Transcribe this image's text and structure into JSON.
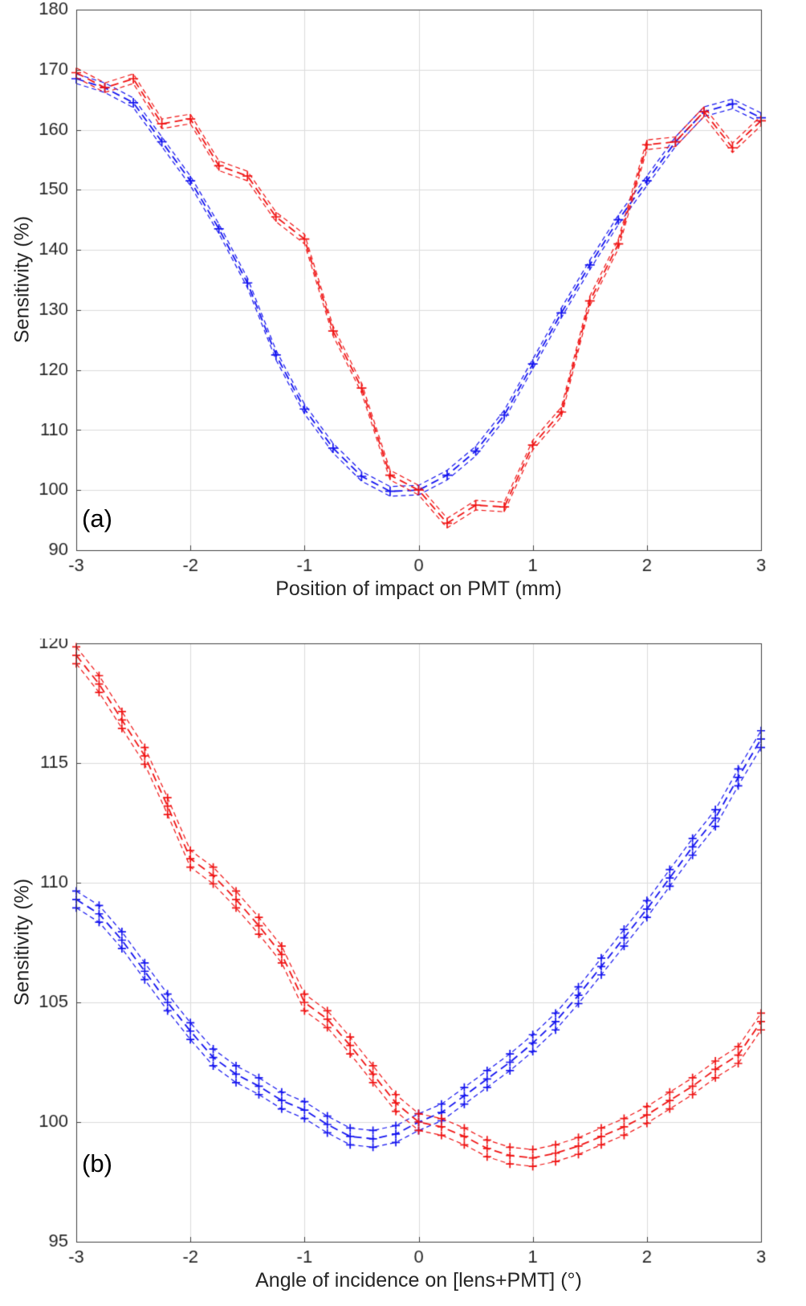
{
  "colors": {
    "background": "#ffffff",
    "grid": "#dcdcdc",
    "axis": "#404040",
    "text": "#262626",
    "blue_series": "#1414f0",
    "red_series": "#f01414"
  },
  "chart_data": [
    {
      "type": "line",
      "annotation": "(a)",
      "xlabel": "Position of impact on PMT (mm)",
      "ylabel": "Sensitivity (%)",
      "xlim": [
        -3,
        3
      ],
      "ylim": [
        90,
        180
      ],
      "xticks": [
        -3,
        -2,
        -1,
        0,
        1,
        2,
        3
      ],
      "yticks": [
        90,
        100,
        110,
        120,
        130,
        140,
        150,
        160,
        170,
        180
      ],
      "grid": true,
      "legend": false,
      "linestyle": "dashed",
      "marker": "+",
      "band_markers": false,
      "marker_size": 6,
      "x": [
        -3,
        -2.75,
        -2.5,
        -2.25,
        -2,
        -1.75,
        -1.5,
        -1.25,
        -1,
        -0.75,
        -0.5,
        -0.25,
        0,
        0.25,
        0.5,
        0.75,
        1,
        1.25,
        1.5,
        1.75,
        2,
        2.25,
        2.5,
        2.75,
        3
      ],
      "series": [
        {
          "name": "blue-curve",
          "color": "#1414f0",
          "band": 0.8,
          "values": [
            168.5,
            167,
            164.5,
            158,
            151.5,
            143.5,
            134.5,
            122.5,
            113.5,
            107,
            102.3,
            99.8,
            100,
            102.5,
            106.5,
            112.5,
            121,
            129.5,
            137.5,
            145,
            151.5,
            158,
            163,
            164.3,
            162
          ]
        },
        {
          "name": "red-curve",
          "color": "#f01414",
          "band": 0.8,
          "values": [
            169.5,
            167,
            168.5,
            161,
            161.8,
            154,
            152.3,
            145.5,
            141.8,
            126.5,
            117,
            102.5,
            100,
            94.5,
            97.5,
            97.2,
            107.5,
            113,
            131.5,
            141,
            157.5,
            158,
            163,
            157,
            161.5
          ]
        }
      ]
    },
    {
      "type": "line",
      "annotation": "(b)",
      "xlabel": "Angle of incidence on [lens+PMT] (°)",
      "ylabel": "Sensitivity (%)",
      "xlim": [
        -3,
        3
      ],
      "ylim": [
        95,
        120
      ],
      "xticks": [
        -3,
        -2,
        -1,
        0,
        1,
        2,
        3
      ],
      "yticks": [
        95,
        100,
        105,
        110,
        115,
        120
      ],
      "grid": true,
      "legend": false,
      "linestyle": "dashed",
      "marker": "+",
      "band_markers": true,
      "marker_size": 5,
      "x": [
        -3,
        -2.8,
        -2.6,
        -2.4,
        -2.2,
        -2,
        -1.8,
        -1.6,
        -1.4,
        -1.2,
        -1,
        -0.8,
        -0.6,
        -0.4,
        -0.2,
        0,
        0.2,
        0.4,
        0.6,
        0.8,
        1,
        1.2,
        1.4,
        1.6,
        1.8,
        2,
        2.2,
        2.4,
        2.6,
        2.8,
        3
      ],
      "series": [
        {
          "name": "blue-curve",
          "color": "#1414f0",
          "band": 0.35,
          "values": [
            109.3,
            108.7,
            107.6,
            106.3,
            105.0,
            103.8,
            102.7,
            102.0,
            101.5,
            100.9,
            100.5,
            99.9,
            99.4,
            99.3,
            99.5,
            100.0,
            100.4,
            101.1,
            101.8,
            102.5,
            103.3,
            104.2,
            105.3,
            106.5,
            107.7,
            108.9,
            110.2,
            111.5,
            112.7,
            114.4,
            116.0
          ]
        },
        {
          "name": "red-curve",
          "color": "#f01414",
          "band": 0.35,
          "values": [
            119.5,
            118.3,
            116.8,
            115.3,
            113.2,
            111.0,
            110.3,
            109.3,
            108.2,
            107.0,
            105.0,
            104.3,
            103.2,
            102.0,
            100.8,
            100.0,
            99.8,
            99.4,
            98.9,
            98.6,
            98.5,
            98.7,
            99.0,
            99.4,
            99.8,
            100.3,
            100.9,
            101.5,
            102.2,
            102.8,
            104.2
          ]
        }
      ]
    }
  ]
}
